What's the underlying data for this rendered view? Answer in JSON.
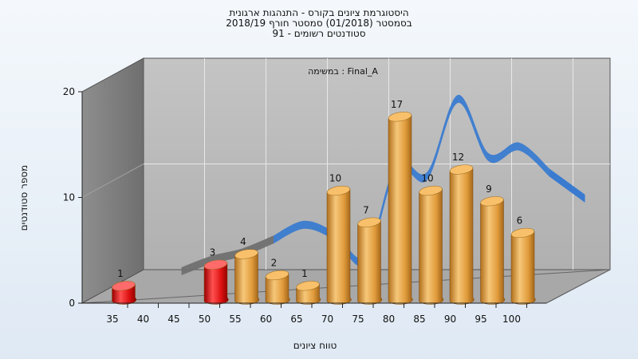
{
  "titles": {
    "line1": "היסטוגרמת ציונים בקורס - התנהגות ארגונית",
    "line2": "בסמסטר  (01/2018)  סמסטר חורף 2018/19",
    "line3": "סטודנטים רשומים - 91"
  },
  "chart_data": {
    "type": "bar",
    "annotation": "במשימה : Final_A",
    "xlabel": "טווח ציונים",
    "ylabel": "מספר סטודנטים",
    "x_ticks": [
      "35",
      "40",
      "45",
      "50",
      "55",
      "60",
      "65",
      "70",
      "75",
      "80",
      "85",
      "90",
      "95",
      "100"
    ],
    "y_ticks": [
      "0",
      "10",
      "20"
    ],
    "ylim": [
      0,
      20
    ],
    "grid": true,
    "bars": [
      {
        "x": 35,
        "value": 1,
        "color": "red"
      },
      {
        "x": 50,
        "value": 3,
        "color": "red"
      },
      {
        "x": 55,
        "value": 4,
        "color": "orange"
      },
      {
        "x": 60,
        "value": 2,
        "color": "orange"
      },
      {
        "x": 65,
        "value": 1,
        "color": "orange"
      },
      {
        "x": 70,
        "value": 10,
        "color": "orange"
      },
      {
        "x": 75,
        "value": 7,
        "color": "orange"
      },
      {
        "x": 80,
        "value": 17,
        "color": "orange"
      },
      {
        "x": 85,
        "value": 10,
        "color": "orange"
      },
      {
        "x": 90,
        "value": 12,
        "color": "orange"
      },
      {
        "x": 95,
        "value": 9,
        "color": "orange"
      },
      {
        "x": 100,
        "value": 6,
        "color": "orange"
      }
    ],
    "curve": {
      "x": [
        40,
        45,
        50,
        55,
        60,
        65,
        70,
        75,
        80,
        85,
        90,
        95,
        100
      ],
      "y": [
        0.6,
        1.7,
        2.4,
        3.6,
        5.0,
        3.9,
        1.7,
        10.5,
        9.6,
        16.9,
        11.4,
        12.4,
        9.9
      ],
      "colors": {
        "low": "#707070",
        "high": "#3a7bd0"
      }
    },
    "colors": {
      "red": "#e01818",
      "orange": "#e4a445",
      "wall_back": "#b9b9b9",
      "wall_left": "#858585",
      "floor": "#a8a8a8"
    }
  }
}
